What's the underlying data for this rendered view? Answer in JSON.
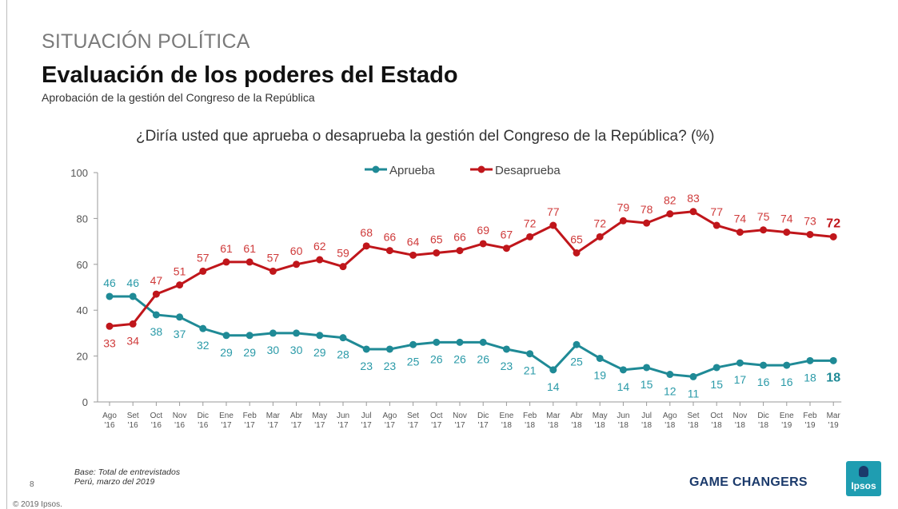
{
  "header": {
    "section": "SITUACIÓN POLÍTICA",
    "title": "Evaluación de los poderes del Estado",
    "subtitle": "Aprobación de la gestión del Congreso de la República",
    "question": "¿Diría usted que aprueba o desaprueba la gestión del Congreso de la República? (%)"
  },
  "chart_data": {
    "type": "line",
    "categories": [
      [
        "Ago",
        "'16"
      ],
      [
        "Set",
        "'16"
      ],
      [
        "Oct",
        "'16"
      ],
      [
        "Nov",
        "'16"
      ],
      [
        "Dic",
        "'16"
      ],
      [
        "Ene",
        "'17"
      ],
      [
        "Feb",
        "'17"
      ],
      [
        "Mar",
        "'17"
      ],
      [
        "Abr",
        "'17"
      ],
      [
        "May",
        "'17"
      ],
      [
        "Jun",
        "'17"
      ],
      [
        "Jul",
        "'17"
      ],
      [
        "Ago",
        "'17"
      ],
      [
        "Set",
        "'17"
      ],
      [
        "Oct",
        "'17"
      ],
      [
        "Nov",
        "'17"
      ],
      [
        "Dic",
        "'17"
      ],
      [
        "Ene",
        "'18"
      ],
      [
        "Feb",
        "'18"
      ],
      [
        "Mar",
        "'18"
      ],
      [
        "Abr",
        "'18"
      ],
      [
        "May",
        "'18"
      ],
      [
        "Jun",
        "'18"
      ],
      [
        "Jul",
        "'18"
      ],
      [
        "Ago",
        "'18"
      ],
      [
        "Set",
        "'18"
      ],
      [
        "Oct",
        "'18"
      ],
      [
        "Nov",
        "'18"
      ],
      [
        "Dic",
        "'18"
      ],
      [
        "Ene",
        "'19"
      ],
      [
        "Feb",
        "'19"
      ],
      [
        "Mar",
        "'19"
      ]
    ],
    "series": [
      {
        "name": "Aprueba",
        "color": "#1f8a96",
        "label_color": "#2a9aa8",
        "values": [
          46,
          46,
          38,
          37,
          32,
          29,
          29,
          30,
          30,
          29,
          28,
          23,
          23,
          25,
          26,
          26,
          26,
          23,
          21,
          14,
          25,
          19,
          14,
          15,
          12,
          11,
          15,
          17,
          16,
          16,
          18,
          18
        ]
      },
      {
        "name": "Desaprueba",
        "color": "#c0161b",
        "label_color": "#cf3a3a",
        "values": [
          33,
          34,
          47,
          51,
          57,
          61,
          61,
          57,
          60,
          62,
          59,
          68,
          66,
          64,
          65,
          66,
          69,
          67,
          72,
          77,
          65,
          72,
          79,
          78,
          82,
          83,
          77,
          74,
          75,
          74,
          73,
          72
        ]
      }
    ],
    "yticks": [
      0,
      20,
      40,
      60,
      80,
      100
    ],
    "ylim": [
      0,
      100
    ],
    "legend": "top-center",
    "grid": false
  },
  "footer": {
    "note1": "Base: Total de entrevistados",
    "note2": "Perú, marzo del 2019",
    "page": "8",
    "copyright": "© 2019 Ipsos.",
    "slogan": "GAME CHANGERS",
    "logo": "Ipsos"
  }
}
